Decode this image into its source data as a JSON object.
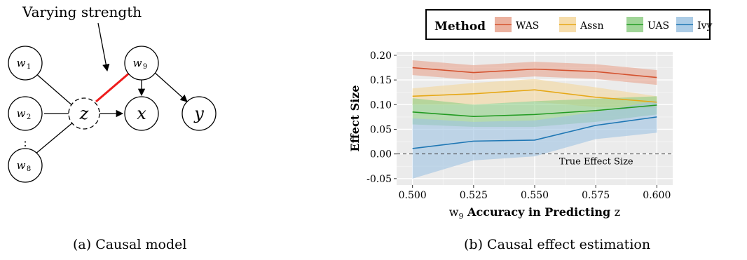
{
  "figure": {
    "caption_a": "(a) Causal model",
    "caption_b": "(b) Causal effect estimation"
  },
  "diagram": {
    "annotation": "Varying strength",
    "nodes": [
      {
        "id": "w1",
        "base": "w",
        "sub": "1"
      },
      {
        "id": "w2",
        "base": "w",
        "sub": "2"
      },
      {
        "id": "w8",
        "base": "w",
        "sub": "8"
      },
      {
        "id": "z",
        "base": "z",
        "sub": ""
      },
      {
        "id": "w9",
        "base": "w",
        "sub": "9"
      },
      {
        "id": "x",
        "base": "x",
        "sub": ""
      },
      {
        "id": "y",
        "base": "y",
        "sub": ""
      }
    ],
    "ellipsis": "⋮",
    "highlight_color": "#ee1c1c"
  },
  "chart_data": {
    "type": "line",
    "legend_title": "Method",
    "legend_position": "top",
    "ylabel": "Effect Size",
    "xlabel_parts": {
      "var": "w",
      "sub": "9",
      "middle": " Accuracy in Predicting ",
      "end": "z"
    },
    "x": [
      0.5,
      0.525,
      0.55,
      0.575,
      0.6
    ],
    "x_ticks": [
      "0.500",
      "0.525",
      "0.550",
      "0.575",
      "0.600"
    ],
    "y_ticks": [
      "-0.05",
      "0.00",
      "0.05",
      "0.10",
      "0.15",
      "0.20"
    ],
    "y_tick_values": [
      -0.05,
      0,
      0.05,
      0.1,
      0.15,
      0.2
    ],
    "xlim": [
      0.4935,
      0.6065
    ],
    "ylim": [
      -0.063,
      0.207
    ],
    "grid": true,
    "reference_line": {
      "y": 0,
      "label": "True Effect Size"
    },
    "series": [
      {
        "name": "WAS",
        "color": "#d4522f",
        "fill": "#e8a38e",
        "values": [
          0.175,
          0.165,
          0.172,
          0.167,
          0.155
        ],
        "lower": [
          0.16,
          0.15,
          0.157,
          0.152,
          0.14
        ],
        "upper": [
          0.19,
          0.18,
          0.187,
          0.182,
          0.17
        ]
      },
      {
        "name": "Assn",
        "color": "#e6a817",
        "fill": "#f4d79c",
        "values": [
          0.117,
          0.122,
          0.13,
          0.115,
          0.105
        ],
        "lower": [
          0.1,
          0.1,
          0.106,
          0.095,
          0.093
        ],
        "upper": [
          0.133,
          0.144,
          0.152,
          0.135,
          0.117
        ]
      },
      {
        "name": "UAS",
        "color": "#239b23",
        "fill": "#8fce86",
        "values": [
          0.085,
          0.076,
          0.08,
          0.088,
          0.099
        ],
        "lower": [
          0.06,
          0.055,
          0.055,
          0.065,
          0.08
        ],
        "upper": [
          0.113,
          0.1,
          0.107,
          0.112,
          0.117
        ]
      },
      {
        "name": "Ivy",
        "color": "#1f77b4",
        "fill": "#9ec3e2",
        "values": [
          0.011,
          0.026,
          0.028,
          0.058,
          0.075
        ],
        "lower": [
          -0.05,
          -0.013,
          -0.005,
          0.03,
          0.043
        ],
        "upper": [
          0.072,
          0.065,
          0.068,
          0.085,
          0.108
        ]
      }
    ]
  }
}
